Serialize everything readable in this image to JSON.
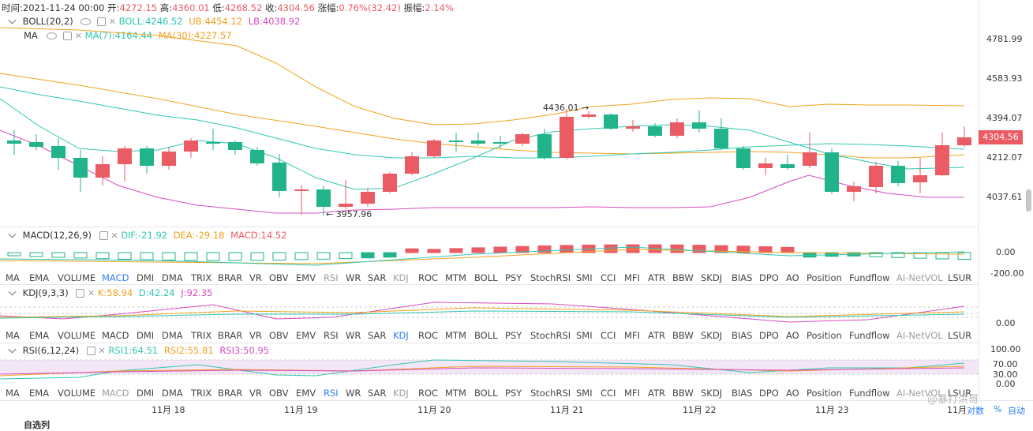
{
  "header": {
    "time_label": "时间:2021-11-24 00:00",
    "open_label": "开:",
    "open": "4272.15",
    "high_label": "高:",
    "high": "4360.01",
    "low_label": "低:",
    "low": "4268.52",
    "close_label": "收:",
    "close": "4304.56",
    "change_label": "涨幅:",
    "change": "0.76%(32.42)",
    "amplitude_label": "振幅:",
    "amplitude": "2.14%"
  },
  "boll": {
    "name": "BOLL(20,2)",
    "boll": "BOLL:4246.52",
    "ub": "UB:4454.12",
    "lb": "LB:4038.92"
  },
  "ma": {
    "name": "MA",
    "ma7": "MA(7):4164.44",
    "ma30": "MA(30):4227.57"
  },
  "price_axis": [
    "4781.99",
    "4583.93",
    "4394.07",
    "4212.07",
    "4037.61"
  ],
  "current_price": "4304.56",
  "annotations": {
    "high_mark": "4436.01 →",
    "low_mark": "← 3957.96"
  },
  "macd": {
    "name": "MACD(12,26,9)",
    "dif": "DIF:-21.92",
    "dea": "DEA:-29.18",
    "macd": "MACD:14.52",
    "axis": [
      "0.00",
      "-200.00"
    ]
  },
  "kdj": {
    "name": "KDJ(9,3,3)",
    "k": "K:58.94",
    "d": "D:42.24",
    "j": "J:92.35",
    "axis": [
      "0.00"
    ]
  },
  "rsi": {
    "name": "RSI(6,12,24)",
    "rsi1": "RSI1:64.51",
    "rsi2": "RSI2:55.81",
    "rsi3": "RSI3:50.95",
    "axis": [
      "100.00",
      "70.00",
      "30.00",
      "0.00"
    ]
  },
  "indicator_tabs": [
    "MA",
    "EMA",
    "VOLUME",
    "MACD",
    "DMI",
    "DMA",
    "TRIX",
    "BRAR",
    "VR",
    "OBV",
    "EMV",
    "RSI",
    "WR",
    "SAR",
    "KDJ",
    "ROC",
    "MTM",
    "BOLL",
    "PSY",
    "StochRSI",
    "SMI",
    "CCI",
    "MFI",
    "ATR",
    "BBW",
    "SKDJ",
    "BIAS",
    "DPO",
    "AO",
    "Position",
    "Fundflow",
    "AI-NetVOL",
    "LSUR"
  ],
  "date_axis": [
    "11月 18",
    "11月 19",
    "11月 20",
    "11月 21",
    "11月 22",
    "11月 23",
    "11月"
  ],
  "bottom_controls": {
    "log": "对数",
    "percent": "%",
    "auto": "自动"
  },
  "watermark": "@暴打洪哥",
  "footer_label": "自选列",
  "colors": {
    "up": "#ea5b64",
    "down": "#21b38a",
    "ma7": "#f0a21c",
    "ma30": "#f0a21c",
    "ub": "#f0a21c",
    "boll_mid": "#31c7b2",
    "lb": "#d84cc0",
    "accent": "#2f80ed"
  }
}
